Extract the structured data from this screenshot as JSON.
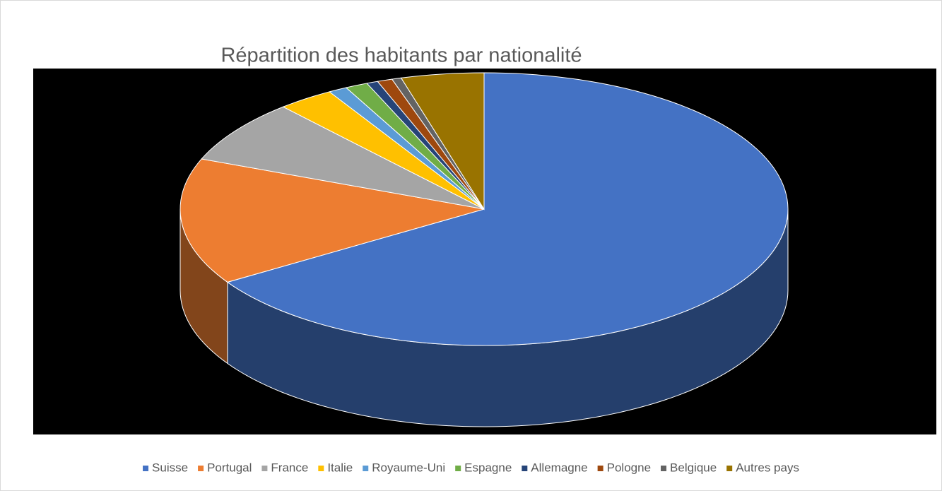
{
  "chart_data": {
    "type": "pie3d",
    "title": "Répartition des habitants par nationalité",
    "categories": [
      "Suisse",
      "Portugal",
      "France",
      "Italie",
      "Royaume-Uni",
      "Espagne",
      "Allemagne",
      "Pologne",
      "Belgique",
      "Autres pays"
    ],
    "values": [
      66,
      15,
      7.5,
      3,
      1,
      1.2,
      0.6,
      0.8,
      0.5,
      4.4
    ],
    "colors": [
      "#4472c4",
      "#ed7d31",
      "#a5a5a5",
      "#ffc000",
      "#5b9bd5",
      "#70ad47",
      "#264478",
      "#9e480e",
      "#636363",
      "#997300"
    ],
    "legend": "bottom"
  }
}
